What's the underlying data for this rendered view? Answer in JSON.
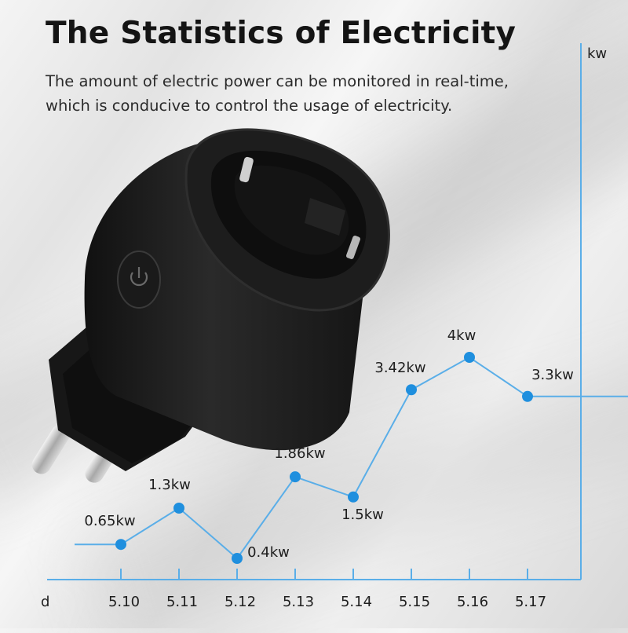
{
  "header": {
    "title": "The Statistics of Electricity",
    "subtitle_line1": "The amount of electric power can be monitored in real-time,",
    "subtitle_line2": "which is conducive to control the usage of electricity."
  },
  "colors": {
    "line": "#5aaee8",
    "point": "#1f8fde",
    "axis": "#5aaee8",
    "plug": "#1b1b1b"
  },
  "icons": {
    "device": "smart-plug",
    "button": "power-icon"
  },
  "chart_data": {
    "type": "line",
    "title": "",
    "xlabel": "d",
    "ylabel": "kw",
    "categories": [
      "5.10",
      "5.11",
      "5.12",
      "5.13",
      "5.14",
      "5.15",
      "5.16",
      "5.17"
    ],
    "series": [
      {
        "values": [
          0.65,
          1.3,
          0.4,
          1.86,
          1.5,
          3.42,
          4,
          3.3
        ]
      }
    ],
    "data_labels": [
      "0.65kw",
      "1.3kw",
      "0.4kw",
      "1.86kw",
      "1.5kw",
      "3.42kw",
      "4kw",
      "3.3kw"
    ],
    "ylim": [
      0,
      5
    ],
    "grid": false,
    "legend": "none"
  }
}
